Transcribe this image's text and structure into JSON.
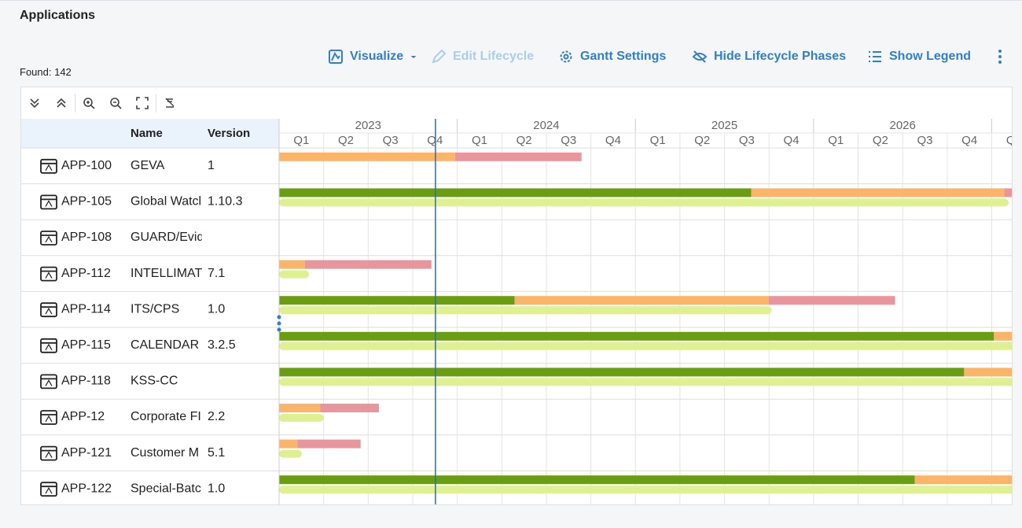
{
  "header": {
    "title": "Applications",
    "found": "Found: 142"
  },
  "toolbar": [
    "Visualize",
    "Edit Lifecycle",
    "Gantt Settings",
    "Hide Lifecycle Phases",
    "Show Legend"
  ],
  "table": {
    "columns": [
      "Name",
      "Version"
    ],
    "rows": [
      {
        "id": "APP-100",
        "name": "GEVA",
        "version": "1",
        "bars": [
          {
            "color": "#fbb468",
            "start": 0,
            "end": 3.95
          },
          {
            "color": "#e8959c",
            "start": 3.95,
            "end": 6.79
          }
        ],
        "support": null
      },
      {
        "id": "APP-105",
        "name": "Global Watcl",
        "version": "1.10.3",
        "bars": [
          {
            "color": "#6a9e12",
            "start": 0,
            "end": 10.6
          },
          {
            "color": "#fbb468",
            "start": 10.6,
            "end": 16.28
          },
          {
            "color": "#e8959c",
            "start": 16.28,
            "end": 16.6
          }
        ],
        "support": {
          "color": "#def08f",
          "start": 0,
          "end": 16.38
        }
      },
      {
        "id": "APP-108",
        "name": "GUARD/Evid",
        "version": "",
        "bars": [],
        "support": null
      },
      {
        "id": "APP-112",
        "name": "INTELLIMAT",
        "version": "7.1",
        "bars": [
          {
            "color": "#fbb468",
            "start": 0,
            "end": 0.58
          },
          {
            "color": "#e8959c",
            "start": 0.58,
            "end": 3.42
          }
        ],
        "support": {
          "color": "#def08f",
          "start": 0,
          "end": 0.67
        }
      },
      {
        "id": "APP-114",
        "name": "ITS/CPS",
        "version": "1.0",
        "bars": [
          {
            "color": "#6a9e12",
            "start": 0,
            "end": 5.29
          },
          {
            "color": "#fbb468",
            "start": 5.29,
            "end": 10.99
          },
          {
            "color": "#e8959c",
            "start": 10.99,
            "end": 13.83
          }
        ],
        "support": {
          "color": "#def08f",
          "start": 0,
          "end": 11.06
        }
      },
      {
        "id": "APP-115",
        "name": "CALENDAR",
        "version": "3.2.5",
        "bars": [
          {
            "color": "#6a9e12",
            "start": 0,
            "end": 16.05
          },
          {
            "color": "#fbb468",
            "start": 16.05,
            "end": 17
          }
        ],
        "support": {
          "color": "#def08f",
          "start": 0,
          "end": 17
        }
      },
      {
        "id": "APP-118",
        "name": "KSS-CC",
        "version": "",
        "bars": [
          {
            "color": "#6a9e12",
            "start": 0,
            "end": 15.38
          },
          {
            "color": "#fbb468",
            "start": 15.38,
            "end": 17
          }
        ],
        "support": {
          "color": "#def08f",
          "start": 0,
          "end": 17
        }
      },
      {
        "id": "APP-12",
        "name": "Corporate FI",
        "version": "2.2",
        "bars": [
          {
            "color": "#fbb468",
            "start": 0,
            "end": 0.92
          },
          {
            "color": "#e8959c",
            "start": 0.92,
            "end": 2.24
          }
        ],
        "support": {
          "color": "#def08f",
          "start": 0,
          "end": 1.0
        }
      },
      {
        "id": "APP-121",
        "name": "Customer M",
        "version": "5.1",
        "bars": [
          {
            "color": "#fbb468",
            "start": 0,
            "end": 0.41
          },
          {
            "color": "#e8959c",
            "start": 0.41,
            "end": 1.83
          }
        ],
        "support": {
          "color": "#def08f",
          "start": 0,
          "end": 0.51
        }
      },
      {
        "id": "APP-122",
        "name": "Special-Batc",
        "version": "1.0",
        "bars": [
          {
            "color": "#6a9e12",
            "start": 0,
            "end": 14.27
          },
          {
            "color": "#fbb468",
            "start": 14.27,
            "end": 17
          }
        ],
        "support": {
          "color": "#def08f",
          "start": 0,
          "end": 17
        }
      }
    ]
  },
  "timeline": {
    "years": [
      "2023",
      "2024",
      "2025",
      "2026"
    ],
    "quarters": [
      "Q1",
      "Q2",
      "Q3",
      "Q4"
    ],
    "xlim": [
      0,
      16.45
    ],
    "today": 3.51
  }
}
